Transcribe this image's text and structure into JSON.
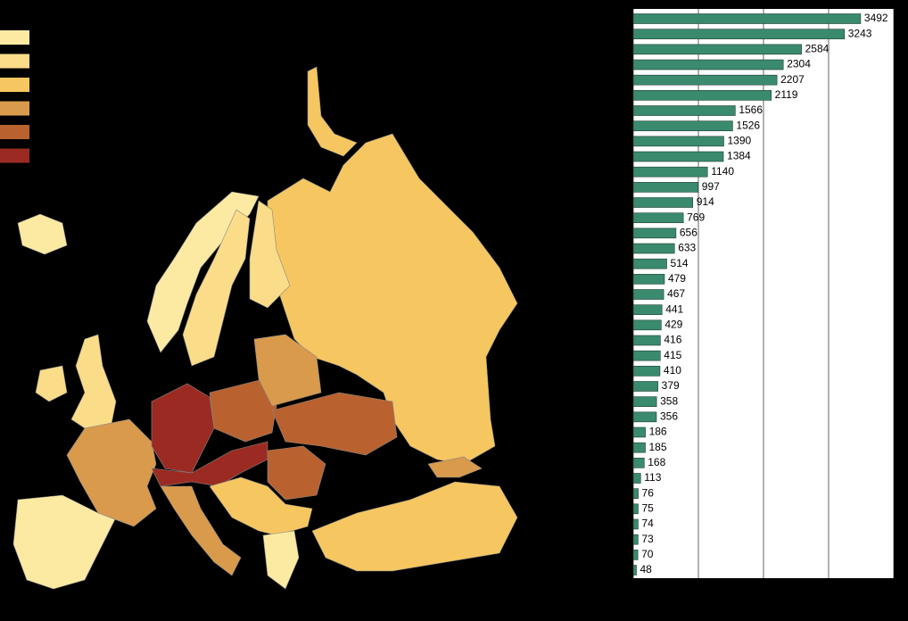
{
  "map": {
    "legend_colors": [
      "#fdeaa2",
      "#fbdc88",
      "#f6c660",
      "#d99a4c",
      "#b9622f",
      "#9b2b22"
    ]
  },
  "chart_data": {
    "type": "bar",
    "orientation": "horizontal",
    "color": "#3a8a6e",
    "categories": [
      null,
      null,
      null,
      null,
      null,
      null,
      null,
      null,
      null,
      null,
      null,
      null,
      null,
      null,
      null,
      null,
      null,
      null,
      null,
      null,
      null,
      null,
      null,
      null,
      null,
      null,
      null,
      null,
      null,
      null,
      null,
      null,
      null,
      null,
      null,
      null,
      null
    ],
    "values": [
      3492,
      3243,
      2584,
      2304,
      2207,
      2119,
      1566,
      1526,
      1390,
      1384,
      1140,
      997,
      914,
      769,
      656,
      633,
      514,
      479,
      467,
      441,
      429,
      416,
      415,
      410,
      379,
      358,
      356,
      186,
      185,
      168,
      113,
      76,
      75,
      74,
      73,
      70,
      48
    ],
    "xlim": [
      0,
      4000
    ],
    "xticks": [
      0,
      1000,
      2000,
      3000,
      4000
    ],
    "grid": true
  }
}
